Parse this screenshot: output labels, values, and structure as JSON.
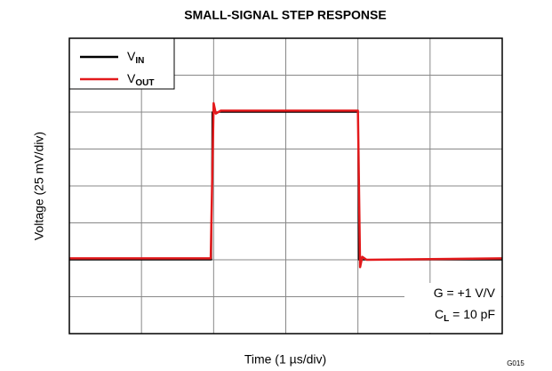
{
  "chart_data": {
    "type": "line",
    "title": "SMALL-SIGNAL STEP RESPONSE",
    "x_label": "Time (1 µs/div)",
    "y_label": "Voltage (25 mV/div)",
    "footnote": "G015",
    "xlim": [
      0,
      6
    ],
    "ylim": [
      0,
      200
    ],
    "xticks": [
      0,
      1,
      2,
      3,
      4,
      5,
      6
    ],
    "yticks": [
      0,
      25,
      50,
      75,
      100,
      125,
      150,
      175,
      200
    ],
    "grid": true,
    "legend": "upper left",
    "series": [
      {
        "name": "V",
        "subscript": "IN",
        "color": "#000000",
        "x": [
          0,
          1.97,
          1.98,
          4.0,
          4.01,
          6
        ],
        "values": [
          50,
          50,
          150,
          150,
          50,
          50
        ]
      },
      {
        "name": "V",
        "subscript": "OUT",
        "color": "#e31a1c",
        "x": [
          0,
          1.96,
          2.0,
          2.03,
          2.1,
          4.0,
          4.03,
          4.06,
          4.12,
          6
        ],
        "values": [
          51,
          51,
          156,
          149,
          151,
          151,
          45,
          52,
          50,
          51
        ]
      }
    ],
    "annotations": [
      [
        "G = +1 V/V"
      ],
      [
        "C",
        "L",
        " = 10 pF"
      ]
    ]
  }
}
